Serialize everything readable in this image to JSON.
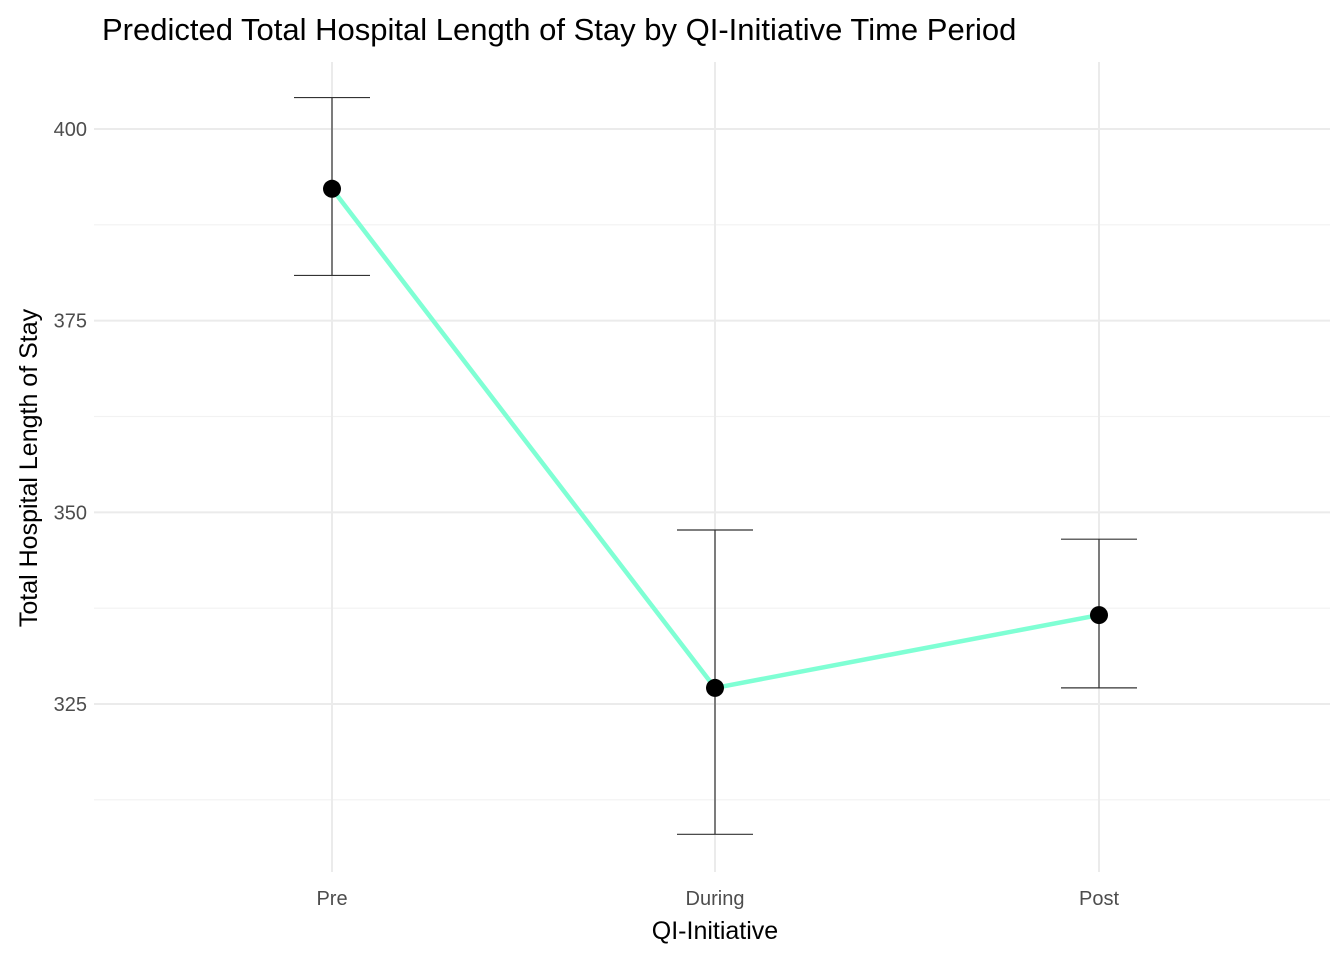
{
  "chart_data": {
    "type": "line",
    "title": "Predicted Total Hospital Length of Stay by QI-Initiative Time Period",
    "xlabel": "QI-Initiative",
    "ylabel": "Total Hospital Length of Stay",
    "categories": [
      "Pre",
      "During",
      "Post"
    ],
    "values": [
      392.2,
      327.1,
      336.6
    ],
    "error_low": [
      380.9,
      308.0,
      327.1
    ],
    "error_high": [
      404.1,
      347.7,
      346.5
    ],
    "yticks": [
      325,
      350,
      375,
      400
    ],
    "ylim": [
      305,
      411
    ],
    "grid": true,
    "line_color": "#7fffd4",
    "point_color": "#000000",
    "errorbar_color": "#333333"
  }
}
